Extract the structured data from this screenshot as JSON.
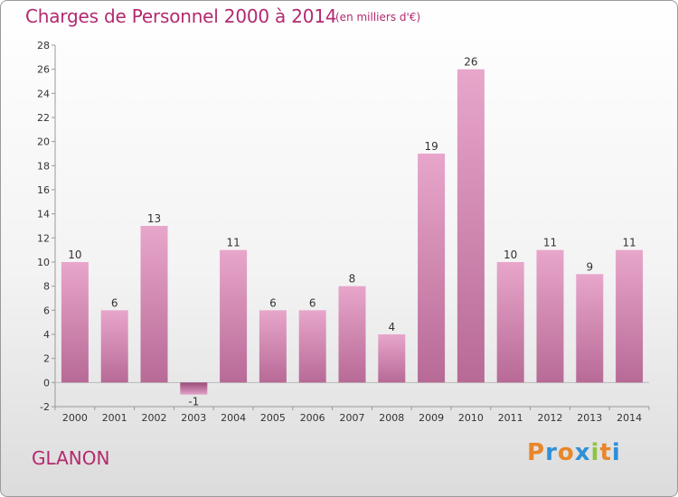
{
  "header": {
    "title": "Charges de Personnel 2000 à 2014",
    "subtitle": "(en milliers d'€)"
  },
  "footer": {
    "commune": "GLANON",
    "logo": {
      "letters": [
        "P",
        "r",
        "o",
        "x",
        "i",
        "t",
        "i"
      ],
      "colors": [
        "#e8862a",
        "#2f8fd6",
        "#e8862a",
        "#2f8fd6",
        "#8cc63f",
        "#e8862a",
        "#2f8fd6"
      ]
    }
  },
  "chart_data": {
    "type": "bar",
    "categories": [
      "2000",
      "2001",
      "2002",
      "2003",
      "2004",
      "2005",
      "2006",
      "2007",
      "2008",
      "2009",
      "2010",
      "2011",
      "2012",
      "2013",
      "2014"
    ],
    "values": [
      10,
      6,
      13,
      -1,
      11,
      6,
      6,
      8,
      4,
      19,
      26,
      10,
      11,
      9,
      11
    ],
    "data_labels": [
      "10",
      "6",
      "13",
      "-1",
      "11",
      "6",
      "6",
      "8",
      "4",
      "19",
      "26",
      "10",
      "11",
      "9",
      "11"
    ],
    "ylim": [
      -2,
      28
    ],
    "yticks": [
      -2,
      0,
      2,
      4,
      6,
      8,
      10,
      12,
      14,
      16,
      18,
      20,
      22,
      24,
      26,
      28
    ],
    "grid": false,
    "bar_color": "#d77aaa"
  }
}
